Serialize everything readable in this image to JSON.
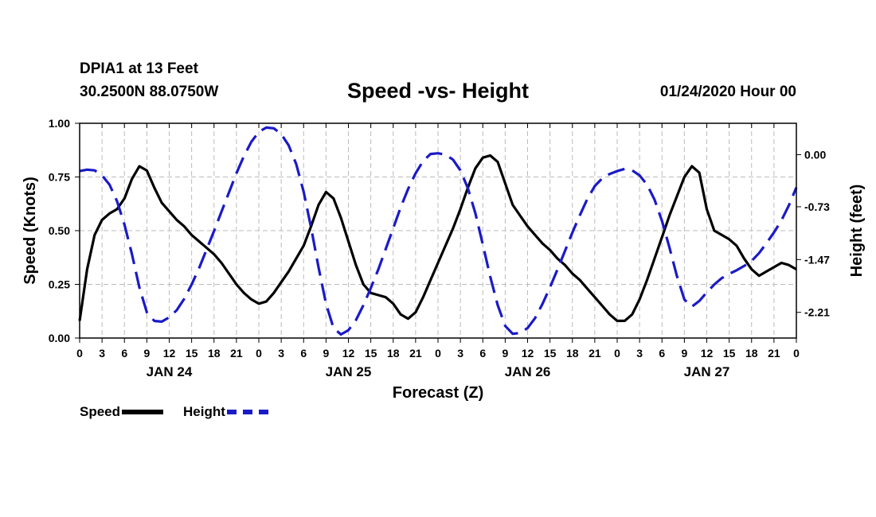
{
  "header": {
    "station": "DPIA1 at 13 Feet",
    "coords": "30.2500N 88.0750W",
    "title": "Speed -vs- Height",
    "date": "01/24/2020 Hour 00"
  },
  "legend": {
    "speed_label": "Speed",
    "height_label": "Height"
  },
  "colors": {
    "speed": "#000000",
    "height": "#1a1ac8",
    "grid": "#bbbbbb"
  },
  "chart_data": {
    "type": "line",
    "title": "Speed -vs- Height",
    "xlabel": "Forecast (Z)",
    "ylabel": "Speed (Knots)",
    "y2label": "Height (feet)",
    "xlim": [
      0,
      96
    ],
    "ylim": [
      0,
      1
    ],
    "y2lim": [
      -2.57,
      0.44
    ],
    "grid": true,
    "x_ticks": [
      0,
      3,
      6,
      9,
      12,
      15,
      18,
      21,
      24,
      27,
      30,
      33,
      36,
      39,
      42,
      45,
      48,
      51,
      54,
      57,
      60,
      63,
      66,
      69,
      72,
      75,
      78,
      81,
      84,
      87,
      90,
      93,
      96
    ],
    "x_tick_labels": [
      "0",
      "3",
      "6",
      "9",
      "12",
      "15",
      "18",
      "21",
      "0",
      "3",
      "6",
      "9",
      "12",
      "15",
      "18",
      "21",
      "0",
      "3",
      "6",
      "9",
      "12",
      "15",
      "18",
      "21",
      "0",
      "3",
      "6",
      "9",
      "12",
      "15",
      "18",
      "21",
      "0"
    ],
    "date_labels": [
      {
        "hour": 12,
        "label": "JAN 24"
      },
      {
        "hour": 36,
        "label": "JAN 25"
      },
      {
        "hour": 60,
        "label": "JAN 26"
      },
      {
        "hour": 84,
        "label": "JAN 27"
      }
    ],
    "y_ticks": [
      0,
      0.25,
      0.5,
      0.75,
      1.0
    ],
    "y_tick_labels": [
      "0.00",
      "0.25",
      "0.50",
      "0.75",
      "1.00"
    ],
    "y2_ticks": [
      0.0,
      -0.73,
      -1.47,
      -2.21
    ],
    "y2_tick_labels": [
      "0.00",
      "-0.73",
      "-1.47",
      "-2.21"
    ],
    "legend_position": "bottom-left",
    "series": [
      {
        "name": "Speed",
        "axis": "left",
        "style": "solid",
        "x": [
          0,
          1,
          2,
          3,
          4,
          5,
          6,
          7,
          8,
          9,
          10,
          11,
          12,
          13,
          14,
          15,
          16,
          17,
          18,
          19,
          20,
          21,
          22,
          23,
          24,
          25,
          26,
          27,
          28,
          29,
          30,
          31,
          32,
          33,
          34,
          35,
          36,
          37,
          38,
          39,
          40,
          41,
          42,
          43,
          44,
          45,
          46,
          47,
          48,
          49,
          50,
          51,
          52,
          53,
          54,
          55,
          56,
          57,
          58,
          59,
          60,
          61,
          62,
          63,
          64,
          65,
          66,
          67,
          68,
          69,
          70,
          71,
          72,
          73,
          74,
          75,
          76,
          77,
          78,
          79,
          80,
          81,
          82,
          83,
          84,
          85,
          86,
          87,
          88,
          89,
          90,
          91,
          92,
          93,
          94,
          95,
          96
        ],
        "values": [
          0.08,
          0.32,
          0.48,
          0.55,
          0.58,
          0.6,
          0.65,
          0.74,
          0.8,
          0.78,
          0.7,
          0.63,
          0.59,
          0.55,
          0.52,
          0.48,
          0.45,
          0.42,
          0.39,
          0.35,
          0.3,
          0.25,
          0.21,
          0.18,
          0.16,
          0.17,
          0.21,
          0.26,
          0.31,
          0.37,
          0.43,
          0.52,
          0.62,
          0.68,
          0.65,
          0.56,
          0.45,
          0.34,
          0.25,
          0.21,
          0.2,
          0.19,
          0.16,
          0.11,
          0.09,
          0.12,
          0.19,
          0.27,
          0.35,
          0.43,
          0.51,
          0.6,
          0.7,
          0.79,
          0.84,
          0.85,
          0.82,
          0.72,
          0.62,
          0.57,
          0.52,
          0.48,
          0.44,
          0.41,
          0.37,
          0.34,
          0.3,
          0.27,
          0.23,
          0.19,
          0.15,
          0.11,
          0.08,
          0.08,
          0.11,
          0.18,
          0.27,
          0.37,
          0.47,
          0.57,
          0.66,
          0.75,
          0.8,
          0.77,
          0.6,
          0.5,
          0.48,
          0.46,
          0.43,
          0.37,
          0.32,
          0.29,
          0.31,
          0.33,
          0.35,
          0.34,
          0.32
        ]
      },
      {
        "name": "Height",
        "axis": "right",
        "style": "dashed",
        "x": [
          0,
          1,
          2,
          3,
          4,
          5,
          6,
          7,
          8,
          9,
          10,
          11,
          12,
          13,
          14,
          15,
          16,
          17,
          18,
          19,
          20,
          21,
          22,
          23,
          24,
          25,
          26,
          27,
          28,
          29,
          30,
          31,
          32,
          33,
          34,
          35,
          36,
          37,
          38,
          39,
          40,
          41,
          42,
          43,
          44,
          45,
          46,
          47,
          48,
          49,
          50,
          51,
          52,
          53,
          54,
          55,
          56,
          57,
          58,
          59,
          60,
          61,
          62,
          63,
          64,
          65,
          66,
          67,
          68,
          69,
          70,
          71,
          72,
          73,
          74,
          75,
          76,
          77,
          78,
          79,
          80,
          81,
          82,
          83,
          84,
          85,
          86,
          87,
          88,
          89,
          90,
          91,
          92,
          93,
          94,
          95,
          96
        ],
        "values": [
          -0.23,
          -0.21,
          -0.22,
          -0.29,
          -0.42,
          -0.65,
          -0.98,
          -1.39,
          -1.86,
          -2.21,
          -2.33,
          -2.34,
          -2.28,
          -2.18,
          -2.02,
          -1.82,
          -1.59,
          -1.33,
          -1.07,
          -0.8,
          -0.53,
          -0.26,
          -0.02,
          0.18,
          0.32,
          0.38,
          0.37,
          0.29,
          0.13,
          -0.13,
          -0.52,
          -1.02,
          -1.58,
          -2.09,
          -2.43,
          -2.52,
          -2.46,
          -2.32,
          -2.11,
          -1.87,
          -1.61,
          -1.32,
          -1.03,
          -0.74,
          -0.48,
          -0.26,
          -0.09,
          0.01,
          0.02,
          0.0,
          -0.07,
          -0.22,
          -0.47,
          -0.82,
          -1.26,
          -1.71,
          -2.11,
          -2.4,
          -2.51,
          -2.5,
          -2.43,
          -2.29,
          -2.09,
          -1.86,
          -1.61,
          -1.35,
          -1.09,
          -0.85,
          -0.62,
          -0.44,
          -0.33,
          -0.27,
          -0.23,
          -0.2,
          -0.22,
          -0.29,
          -0.42,
          -0.63,
          -0.93,
          -1.3,
          -1.7,
          -2.03,
          -2.13,
          -2.05,
          -1.93,
          -1.82,
          -1.73,
          -1.67,
          -1.62,
          -1.56,
          -1.49,
          -1.38,
          -1.24,
          -1.09,
          -0.92,
          -0.71,
          -0.46
        ]
      }
    ]
  }
}
